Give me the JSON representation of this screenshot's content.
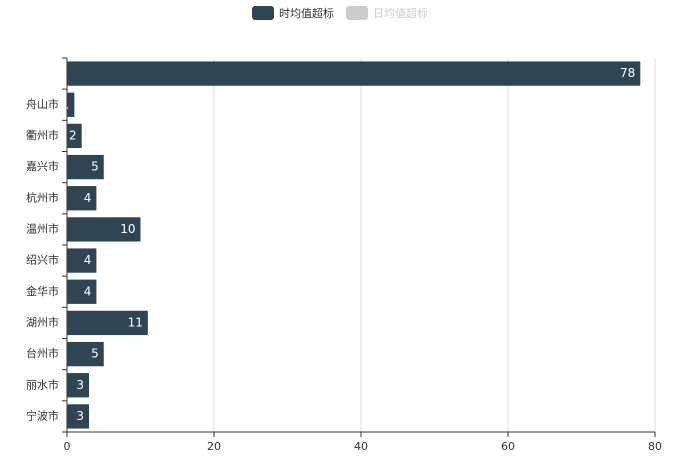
{
  "chart_data": {
    "type": "bar",
    "orientation": "horizontal",
    "categories": [
      null,
      "舟山市",
      "衢州市",
      "嘉兴市",
      "杭州市",
      "温州市",
      "绍兴市",
      "金华市",
      "湖州市",
      "台州市",
      "丽水市",
      "宁波市"
    ],
    "series": [
      {
        "name": "时均值超标",
        "color": "#2f4554",
        "values": [
          78,
          1,
          2,
          5,
          4,
          10,
          4,
          4,
          11,
          5,
          3,
          3
        ]
      },
      {
        "name": "日均值超标",
        "color": "#cccccc",
        "values": [
          null,
          null,
          null,
          null,
          null,
          null,
          null,
          null,
          null,
          null,
          null,
          null
        ]
      }
    ],
    "xlim": [
      0,
      80
    ],
    "xticks": [
      0,
      20,
      40,
      60,
      80
    ],
    "grid": true,
    "legend": "top"
  }
}
